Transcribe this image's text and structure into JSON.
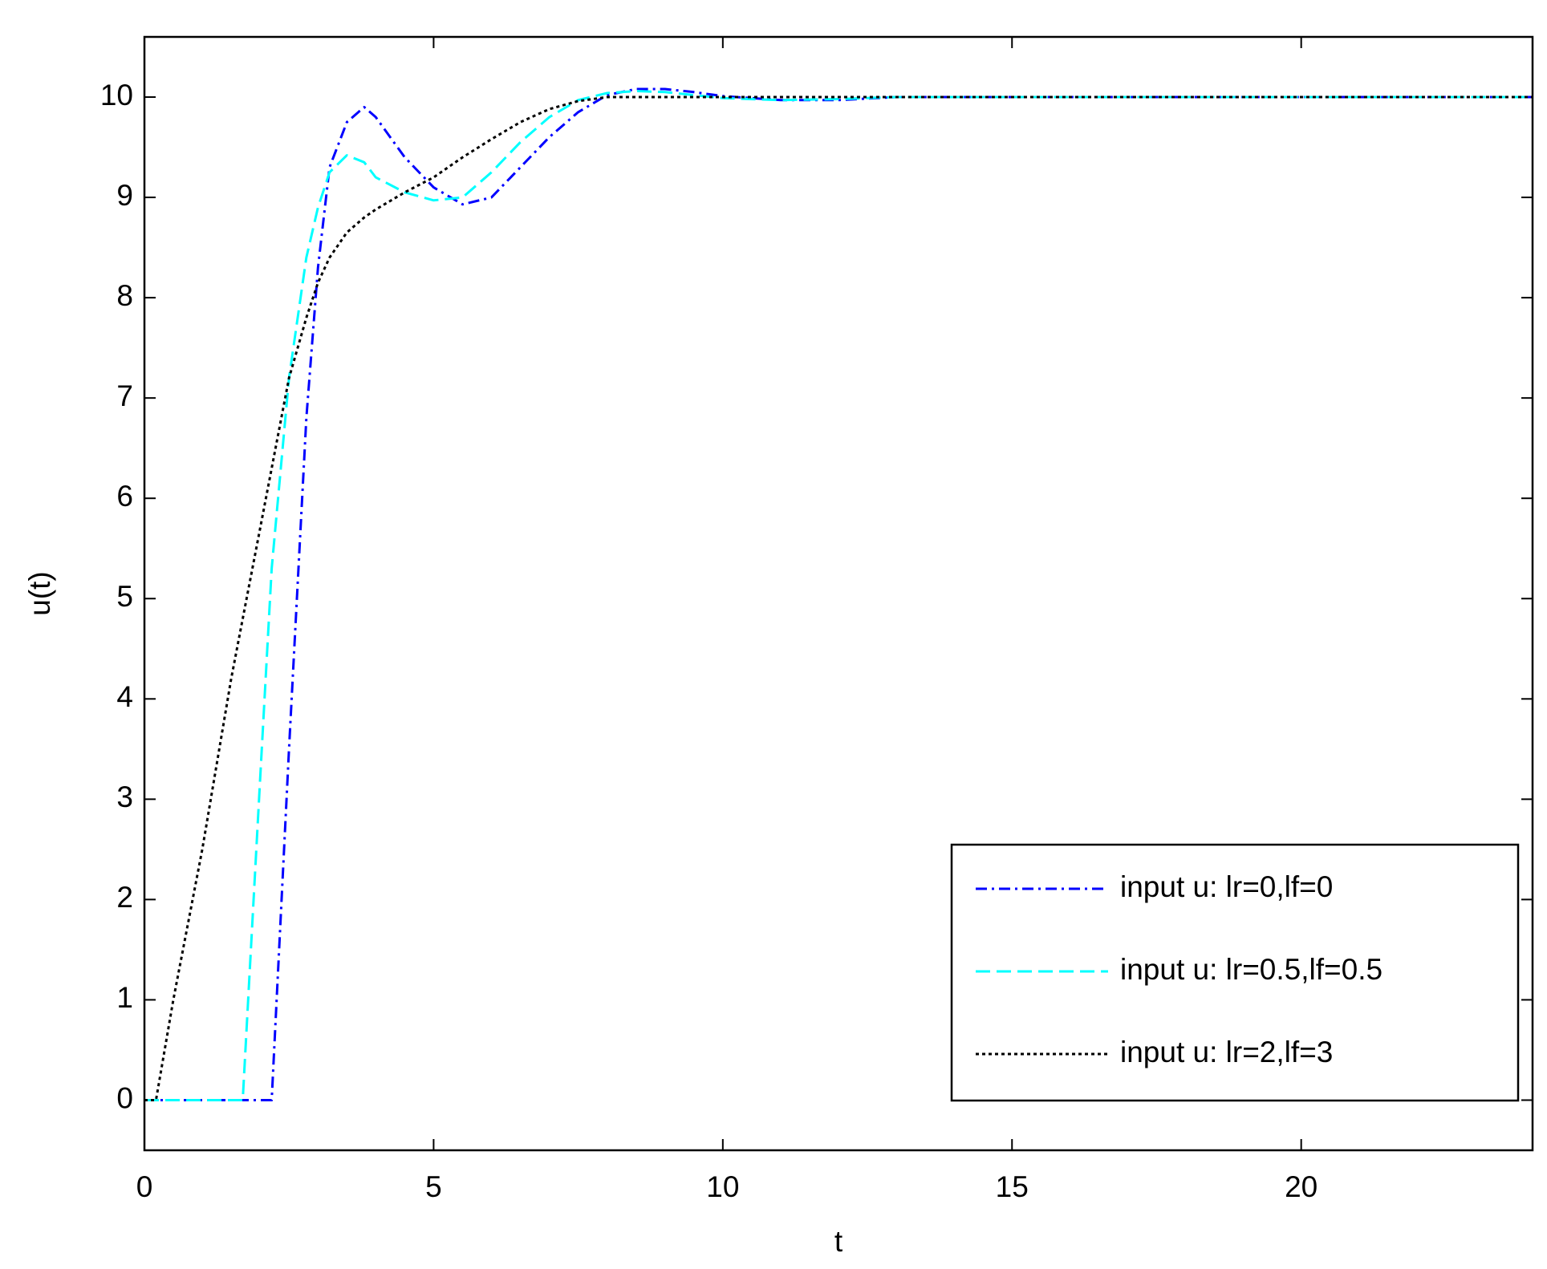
{
  "chart_data": {
    "type": "line",
    "xlabel": "t",
    "ylabel": "u(t)",
    "x": [
      0,
      0.2,
      0.5,
      1,
      1.5,
      1.7,
      2,
      2.2,
      2.5,
      2.8,
      3,
      3.2,
      3.5,
      3.8,
      4,
      4.5,
      5,
      5.5,
      6,
      6.5,
      7,
      7.5,
      8,
      8.5,
      9,
      9.5,
      10,
      11,
      12,
      13,
      15,
      20,
      24
    ],
    "series": [
      {
        "name": "input u: lr=0,lf=0",
        "color": "#0000ff",
        "dash": "14,6,3,6",
        "values": [
          0,
          0,
          0,
          0,
          0,
          0,
          0,
          0,
          3.5,
          6.8,
          8.3,
          9.3,
          9.75,
          9.9,
          9.8,
          9.4,
          9.1,
          8.93,
          9.0,
          9.3,
          9.6,
          9.85,
          10.02,
          10.08,
          10.08,
          10.05,
          10.01,
          9.97,
          9.97,
          10,
          10,
          10,
          10
        ]
      },
      {
        "name": "input u: lr=0.5,lf=0.5",
        "color": "#00ffff",
        "dash": "18,8",
        "values": [
          0,
          0,
          0,
          0,
          0,
          0,
          3.2,
          5.3,
          7.2,
          8.4,
          8.9,
          9.25,
          9.42,
          9.35,
          9.2,
          9.05,
          8.97,
          9.0,
          9.25,
          9.55,
          9.8,
          9.97,
          10.04,
          10.06,
          10.05,
          10.02,
          9.99,
          9.97,
          9.98,
          10,
          10,
          10,
          10
        ]
      },
      {
        "name": "input u: lr=2,lf=3",
        "color": "#000000",
        "dash": "4,4",
        "values": [
          0,
          0,
          1,
          2.5,
          4.2,
          4.8,
          5.7,
          6.3,
          7.2,
          7.8,
          8.15,
          8.4,
          8.65,
          8.8,
          8.88,
          9.05,
          9.2,
          9.4,
          9.58,
          9.75,
          9.88,
          9.96,
          10,
          10,
          10,
          10,
          10,
          10,
          10,
          10,
          10,
          10,
          10
        ]
      }
    ],
    "xlim": [
      0,
      24
    ],
    "xticks": [
      0,
      5,
      10,
      15,
      20
    ],
    "ylim": [
      -0.5,
      10.6
    ],
    "yticks": [
      0,
      1,
      2,
      3,
      4,
      5,
      6,
      7,
      8,
      9,
      10
    ],
    "grid": false,
    "legend": "lower right"
  }
}
